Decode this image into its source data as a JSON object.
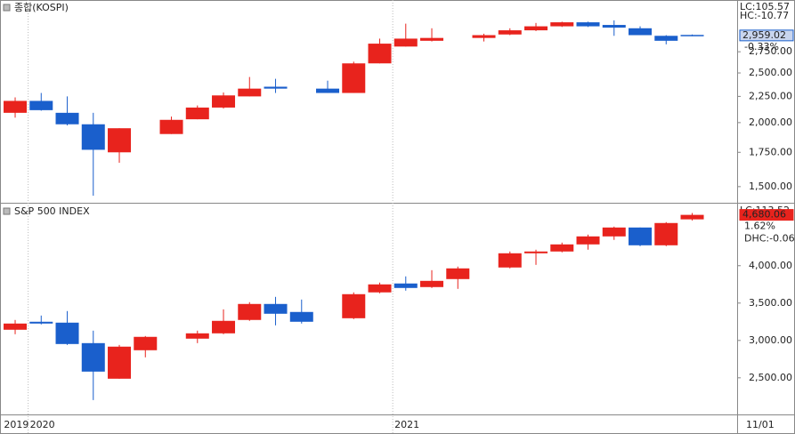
{
  "chart_data": [
    {
      "type": "candlestick",
      "title": "종합(KOSPI)",
      "log": true,
      "up_color": "#e8231d",
      "down_color": "#1a5fcc",
      "open": [
        2090,
        2205,
        2090,
        1985,
        1750,
        null,
        1900,
        2030,
        2140,
        2250,
        2350,
        null,
        2330,
        2285,
        2610,
        2815,
        2889,
        null,
        2926,
        2972,
        3028,
        3083,
        3139,
        3102,
        3056,
        2954,
        2966
      ],
      "high": [
        2240,
        2285,
        2250,
        2090,
        1950,
        null,
        2055,
        2160,
        2290,
        2455,
        2435,
        null,
        2415,
        2630,
        2917,
        3120,
        3056,
        null,
        2982,
        3056,
        3130,
        3148,
        3148,
        3167,
        3083,
        2963,
        2972
      ],
      "low": [
        2045,
        2110,
        1975,
        1440,
        1670,
        null,
        1900,
        2030,
        2130,
        2250,
        2285,
        null,
        2285,
        2285,
        2610,
        2815,
        2880,
        null,
        2880,
        2963,
        3018,
        3074,
        3074,
        2954,
        2963,
        2843,
        2950
      ],
      "close": [
        2205,
        2115,
        1985,
        1770,
        1950,
        null,
        2025,
        2140,
        2260,
        2330,
        2330,
        null,
        2285,
        2610,
        2852,
        2917,
        2926,
        null,
        2963,
        3028,
        3083,
        3139,
        3083,
        3065,
        2963,
        2889,
        2959.02
      ],
      "ylim": [
        1395,
        3470
      ],
      "yticks": [
        {
          "value": 1500,
          "label": "1,500.00"
        },
        {
          "value": 1750,
          "label": "1,750.00"
        },
        {
          "value": 2000,
          "label": "2,000.00"
        },
        {
          "value": 2250,
          "label": "2,250.00"
        },
        {
          "value": 2500,
          "label": "2,500.00"
        },
        {
          "value": 2750,
          "label": "2,750.00"
        }
      ],
      "labels_top": [
        {
          "text": "LC:105.57",
          "color": "#e8231d"
        },
        {
          "text": "HC:-10.77",
          "color": "#1a5fcc"
        }
      ],
      "last_price": {
        "value": 2959.02,
        "label": "2,959.02",
        "color": "#1a5fcc"
      },
      "labels_below": [
        {
          "text": "-0.33%",
          "color": "#1a5fcc"
        }
      ]
    },
    {
      "type": "candlestick",
      "title": "S&P 500 INDEX",
      "log": false,
      "up_color": "#e8231d",
      "down_color": "#1a5fcc",
      "categories": [
        "2019",
        "2020",
        null,
        null,
        null,
        null,
        null,
        null,
        null,
        null,
        null,
        null,
        null,
        null,
        null,
        "2021",
        null,
        null,
        null,
        null,
        null,
        null,
        null,
        null,
        null,
        null,
        null
      ],
      "x_end_label": "11/01",
      "open": [
        3143,
        3250,
        3238,
        2964,
        2488,
        2869,
        null,
        3024,
        3095,
        3274,
        3488,
        3381,
        null,
        3297,
        3643,
        3762,
        3714,
        3821,
        null,
        3976,
        4166,
        4190,
        4285,
        4392,
        4511,
        4273,
        4620
      ],
      "high": [
        3274,
        3333,
        3393,
        3131,
        2940,
        3059,
        null,
        3131,
        3416,
        3512,
        3583,
        3547,
        null,
        3643,
        3774,
        3857,
        3940,
        3988,
        null,
        4190,
        4214,
        4309,
        4416,
        4523,
        4511,
        4583,
        4705
      ],
      "low": [
        3083,
        3214,
        2940,
        2202,
        2488,
        2774,
        null,
        2964,
        3083,
        3262,
        3202,
        3226,
        null,
        3285,
        3631,
        3666,
        3702,
        3690,
        null,
        3964,
        4011,
        4178,
        4214,
        4345,
        4261,
        4261,
        4605
      ],
      "close": [
        3226,
        3226,
        2952,
        2583,
        2917,
        3048,
        null,
        3095,
        3262,
        3488,
        3357,
        3250,
        null,
        3619,
        3750,
        3702,
        3797,
        3964,
        null,
        4166,
        4190,
        4285,
        4392,
        4511,
        4273,
        4571,
        4680.06
      ],
      "ylim": [
        2010,
        4830
      ],
      "yticks": [
        {
          "value": 2500,
          "label": "2,500.00"
        },
        {
          "value": 3000,
          "label": "3,000.00"
        },
        {
          "value": 3500,
          "label": "3,500.00"
        },
        {
          "value": 4000,
          "label": "4,000.00"
        }
      ],
      "labels_top": [
        {
          "text": "LC:113.52",
          "color": "#e8231d"
        }
      ],
      "last_price": {
        "value": 4680.06,
        "label": "4,680.06",
        "color": "#e8231d"
      },
      "labels_below": [
        {
          "text": "1.62%",
          "color": "#e8231d"
        },
        {
          "text": "DHC:-0.06",
          "color": "#1a5fcc"
        }
      ]
    }
  ]
}
